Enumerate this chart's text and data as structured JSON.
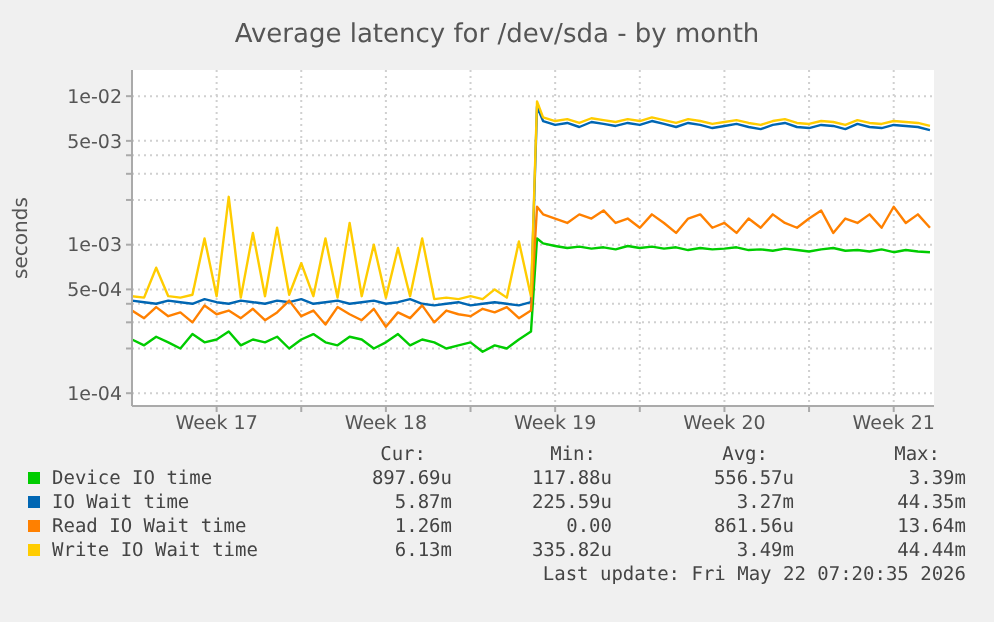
{
  "chart_data": {
    "type": "line",
    "title": "Average latency for /dev/sda - by month",
    "ylabel": "seconds",
    "log": true,
    "grid": true,
    "legend": "bottom",
    "marker": "none",
    "line_style": "solid",
    "x": [
      "2026-04-20T00:00",
      "2026-04-20T12:00",
      "2026-04-21T00:00",
      "2026-04-21T12:00",
      "2026-04-22T00:00",
      "2026-04-22T12:00",
      "2026-04-23T00:00",
      "2026-04-23T12:00",
      "2026-04-24T00:00",
      "2026-04-24T12:00",
      "2026-04-25T00:00",
      "2026-04-25T12:00",
      "2026-04-26T00:00",
      "2026-04-26T12:00",
      "2026-04-27T00:00",
      "2026-04-27T12:00",
      "2026-04-28T00:00",
      "2026-04-28T12:00",
      "2026-04-29T00:00",
      "2026-04-29T12:00",
      "2026-04-30T00:00",
      "2026-04-30T12:00",
      "2026-05-01T00:00",
      "2026-05-01T12:00",
      "2026-05-02T00:00",
      "2026-05-02T12:00",
      "2026-05-03T00:00",
      "2026-05-03T12:00",
      "2026-05-04T00:00",
      "2026-05-04T12:00",
      "2026-05-05T00:00",
      "2026-05-05T12:00",
      "2026-05-06T00:00",
      "2026-05-06T12:00",
      "2026-05-06T18:00",
      "2026-05-07T00:00",
      "2026-05-07T12:00",
      "2026-05-08T00:00",
      "2026-05-08T12:00",
      "2026-05-09T00:00",
      "2026-05-09T12:00",
      "2026-05-10T00:00",
      "2026-05-10T12:00",
      "2026-05-11T00:00",
      "2026-05-11T12:00",
      "2026-05-12T00:00",
      "2026-05-12T12:00",
      "2026-05-13T00:00",
      "2026-05-13T12:00",
      "2026-05-14T00:00",
      "2026-05-14T12:00",
      "2026-05-15T00:00",
      "2026-05-15T12:00",
      "2026-05-16T00:00",
      "2026-05-16T12:00",
      "2026-05-17T00:00",
      "2026-05-17T12:00",
      "2026-05-18T00:00",
      "2026-05-18T12:00",
      "2026-05-19T00:00",
      "2026-05-19T12:00",
      "2026-05-20T00:00",
      "2026-05-20T12:00",
      "2026-05-21T00:00",
      "2026-05-21T12:00",
      "2026-05-22T00:00",
      "2026-05-22T12:00",
      "2026-05-23T00:00"
    ],
    "xlim": [
      "2026-04-20T00:00",
      "2026-05-23T04:00"
    ],
    "xticks": [
      {
        "value": "2026-04-23T12:00",
        "label": "Week 17"
      },
      {
        "value": "2026-04-27T00:00",
        "label": null
      },
      {
        "value": "2026-04-30T12:00",
        "label": "Week 18"
      },
      {
        "value": "2026-05-04T00:00",
        "label": null
      },
      {
        "value": "2026-05-07T12:00",
        "label": "Week 19"
      },
      {
        "value": "2026-05-11T00:00",
        "label": null
      },
      {
        "value": "2026-05-14T12:00",
        "label": "Week 20"
      },
      {
        "value": "2026-05-18T00:00",
        "label": null
      },
      {
        "value": "2026-05-21T12:00",
        "label": "Week 21"
      }
    ],
    "ylim": [
      8.2e-05,
      0.015
    ],
    "yticks": [
      {
        "value": 0.0001,
        "label": "1e-04"
      },
      {
        "value": 0.0002,
        "label": null
      },
      {
        "value": 0.0003,
        "label": null
      },
      {
        "value": 0.0004,
        "label": null
      },
      {
        "value": 0.0005,
        "label": "5e-04"
      },
      {
        "value": 0.001,
        "label": "1e-03"
      },
      {
        "value": 0.002,
        "label": null
      },
      {
        "value": 0.003,
        "label": null
      },
      {
        "value": 0.004,
        "label": null
      },
      {
        "value": 0.005,
        "label": "5e-03"
      },
      {
        "value": 0.01,
        "label": "1e-02"
      }
    ],
    "series": [
      {
        "name": "Device IO time",
        "color": "#00cc00",
        "values": [
          0.00023,
          0.00021,
          0.00024,
          0.00022,
          0.0002,
          0.00025,
          0.00022,
          0.00023,
          0.00026,
          0.00021,
          0.00023,
          0.00022,
          0.00024,
          0.0002,
          0.00023,
          0.00025,
          0.00022,
          0.00021,
          0.00024,
          0.00023,
          0.0002,
          0.00022,
          0.00025,
          0.00021,
          0.00023,
          0.00022,
          0.0002,
          0.00021,
          0.00022,
          0.00019,
          0.00021,
          0.0002,
          0.00023,
          0.00026,
          0.0011,
          0.00102,
          0.00098,
          0.00095,
          0.00097,
          0.00094,
          0.00096,
          0.00093,
          0.00098,
          0.00095,
          0.00097,
          0.00094,
          0.00096,
          0.00092,
          0.00095,
          0.00093,
          0.00094,
          0.00096,
          0.00092,
          0.00093,
          0.00091,
          0.00094,
          0.00092,
          0.0009,
          0.00093,
          0.00095,
          0.00091,
          0.00092,
          0.0009,
          0.00093,
          0.00089,
          0.00092,
          0.0009,
          0.00089
        ]
      },
      {
        "name": "IO Wait time",
        "color": "#0066b3",
        "values": [
          0.00042,
          0.00041,
          0.0004,
          0.00042,
          0.00041,
          0.0004,
          0.00043,
          0.00041,
          0.0004,
          0.00042,
          0.00041,
          0.0004,
          0.00042,
          0.00041,
          0.00043,
          0.0004,
          0.00041,
          0.00042,
          0.0004,
          0.00041,
          0.00042,
          0.0004,
          0.00041,
          0.00043,
          0.0004,
          0.00039,
          0.0004,
          0.00041,
          0.00039,
          0.0004,
          0.00041,
          0.0004,
          0.00039,
          0.00041,
          0.0085,
          0.0068,
          0.0064,
          0.0066,
          0.0062,
          0.0067,
          0.0065,
          0.0063,
          0.0066,
          0.0064,
          0.0068,
          0.0065,
          0.0062,
          0.0066,
          0.0064,
          0.0061,
          0.0063,
          0.0065,
          0.0062,
          0.006,
          0.0064,
          0.0066,
          0.0062,
          0.0061,
          0.0064,
          0.0063,
          0.006,
          0.0065,
          0.0062,
          0.0061,
          0.0064,
          0.0063,
          0.0062,
          0.0059
        ]
      },
      {
        "name": "Read IO Wait time",
        "color": "#ff8000",
        "values": [
          0.00036,
          0.00032,
          0.00038,
          0.00033,
          0.00035,
          0.0003,
          0.00039,
          0.00034,
          0.00036,
          0.00032,
          0.00037,
          0.00031,
          0.00035,
          0.00042,
          0.00033,
          0.00036,
          0.00029,
          0.00038,
          0.00034,
          0.00031,
          0.00037,
          0.00028,
          0.00035,
          0.00032,
          0.00039,
          0.0003,
          0.00036,
          0.00034,
          0.00033,
          0.00037,
          0.00035,
          0.00038,
          0.00032,
          0.00036,
          0.0018,
          0.0016,
          0.0015,
          0.0014,
          0.0016,
          0.0015,
          0.0017,
          0.0014,
          0.0015,
          0.0013,
          0.0016,
          0.0014,
          0.0012,
          0.0015,
          0.0016,
          0.0013,
          0.0014,
          0.0012,
          0.0015,
          0.0013,
          0.0016,
          0.0014,
          0.0013,
          0.0015,
          0.0017,
          0.0012,
          0.0015,
          0.0014,
          0.0016,
          0.0013,
          0.0018,
          0.0014,
          0.0016,
          0.0013
        ]
      },
      {
        "name": "Write IO Wait time",
        "color": "#ffcc00",
        "values": [
          0.00045,
          0.00044,
          0.0007,
          0.00045,
          0.00044,
          0.00046,
          0.0011,
          0.00045,
          0.0021,
          0.00044,
          0.0012,
          0.00045,
          0.0013,
          0.00046,
          0.00075,
          0.00045,
          0.0011,
          0.00044,
          0.0014,
          0.00045,
          0.001,
          0.00044,
          0.00095,
          0.00045,
          0.0011,
          0.00043,
          0.00044,
          0.00043,
          0.00045,
          0.00043,
          0.0005,
          0.00044,
          0.00105,
          0.00045,
          0.0092,
          0.0072,
          0.0068,
          0.007,
          0.0066,
          0.0071,
          0.0069,
          0.0067,
          0.007,
          0.0068,
          0.0072,
          0.0069,
          0.0066,
          0.007,
          0.0068,
          0.0065,
          0.0067,
          0.0069,
          0.0066,
          0.0064,
          0.0068,
          0.007,
          0.0066,
          0.0065,
          0.0068,
          0.0067,
          0.0064,
          0.0069,
          0.0066,
          0.0065,
          0.0068,
          0.0067,
          0.0066,
          0.0063
        ]
      }
    ],
    "annotations": [
      "Cur:",
      "Min:",
      "Avg:",
      "Max:",
      "897.69u",
      "117.88u",
      "556.57u",
      "3.39m",
      "5.87m",
      "225.59u",
      "3.27m",
      "44.35m",
      "1.26m",
      "0.00",
      "861.56u",
      "13.64m",
      "6.13m",
      "335.82u",
      "3.49m",
      "44.44m",
      "Last update: Fri May 22 07:20:35 2026"
    ]
  }
}
